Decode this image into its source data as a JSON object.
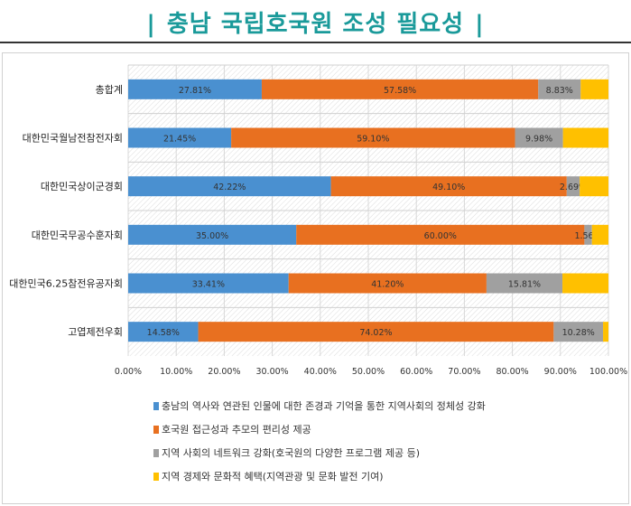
{
  "title": "충남 국립호국원 조성 필요성",
  "title_bar": "|",
  "chart_data": {
    "type": "bar",
    "orientation": "horizontal",
    "stacked": true,
    "categories": [
      "총합계",
      "대한민국월남전참전자회",
      "대한민국상이군경회",
      "대한민국무공수훈자회",
      "대한민국6.25참전유공자회",
      "고엽제전우회"
    ],
    "series": [
      {
        "name": "충남의 역사와 연관된 인물에 대한 존경과 기억을 통한 지역사회의 정체성 강화",
        "color": "#4a90d0",
        "values": [
          27.81,
          21.45,
          42.22,
          35.0,
          33.41,
          14.58
        ],
        "labels": [
          "27.81%",
          "21.45%",
          "42.22%",
          "35.00%",
          "33.41%",
          "14.58%"
        ]
      },
      {
        "name": "호국원 접근성과 추모의 편리성 제공",
        "color": "#e87020",
        "values": [
          57.58,
          59.1,
          49.1,
          60.0,
          41.2,
          74.02
        ],
        "labels": [
          "57.58%",
          "59.10%",
          "49.10%",
          "60.00%",
          "41.20%",
          "74.02%"
        ]
      },
      {
        "name": "지역 사회의 네트워크 강화(호국원의 다양한 프로그램 제공 등)",
        "color": "#a0a0a0",
        "values": [
          8.83,
          9.98,
          2.69,
          1.56,
          15.81,
          10.28
        ],
        "labels": [
          "8.83%",
          "9.98%",
          "2.69%",
          "1.56%",
          "15.81%",
          "10.28%"
        ]
      },
      {
        "name": "지역 경제와 문화적 혜택(지역관광 및 문화 발전 기여)",
        "color": "#ffc000",
        "values": [
          5.78,
          9.47,
          5.99,
          3.44,
          9.58,
          1.12
        ],
        "labels": [
          "",
          "",
          "",
          "",
          "",
          ""
        ]
      }
    ],
    "xlim": [
      0,
      100
    ],
    "xticks": [
      "0.00%",
      "10.00%",
      "20.00%",
      "30.00%",
      "40.00%",
      "50.00%",
      "60.00%",
      "70.00%",
      "80.00%",
      "90.00%",
      "100.00%"
    ],
    "grid": true,
    "legend_position": "bottom"
  }
}
